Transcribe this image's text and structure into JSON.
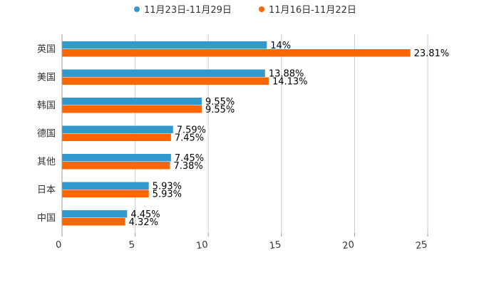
{
  "chart_data": {
    "type": "bar",
    "orientation": "horizontal",
    "categories": [
      "英国",
      "美国",
      "韩国",
      "德国",
      "其他",
      "日本",
      "中国"
    ],
    "series": [
      {
        "name": "11月23日-11月29日",
        "color": "#3399cc",
        "values": [
          14,
          13.88,
          9.55,
          7.59,
          7.45,
          5.93,
          4.45
        ],
        "labels": [
          "14%",
          "13.88%",
          "9.55%",
          "7.59%",
          "7.45%",
          "5.93%",
          "4.45%"
        ]
      },
      {
        "name": "11月16日-11月22日",
        "color": "#ff6600",
        "values": [
          23.81,
          14.13,
          9.55,
          7.45,
          7.38,
          5.93,
          4.32
        ],
        "labels": [
          "23.81%",
          "14.13%",
          "9.55%",
          "7.45%",
          "7.38%",
          "5.93%",
          "4.32%"
        ]
      }
    ],
    "xlim": [
      0,
      25
    ],
    "xticks": [
      "0",
      "5",
      "10",
      "15",
      "20",
      "25"
    ],
    "grid": true,
    "legend_position": "top-center"
  }
}
